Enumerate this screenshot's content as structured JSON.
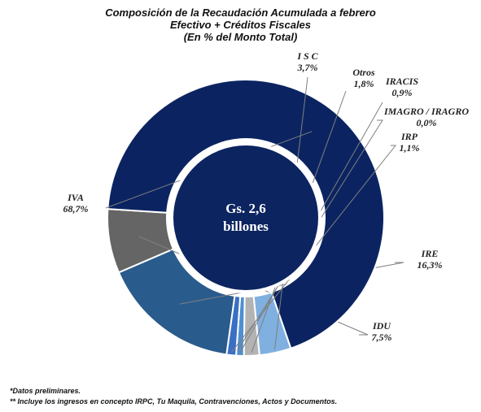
{
  "title_lines": [
    "Composición de la Recaudación Acumulada a febrero",
    "Efectivo + Créditos Fiscales",
    "(En % del Monto Total)"
  ],
  "center_label_lines": [
    "Gs. 2,6",
    "billones"
  ],
  "footnotes": [
    "*Datos preliminares.",
    "** Incluye los ingresos en concepto IRPC, Tu Maquila, Contravenciones, Actos y Documentos."
  ],
  "colors": {
    "center_fill": "#0c2460",
    "ring_stroke": "#ffffff",
    "leader_line": "#7f7f7f",
    "label_text": "#222222"
  },
  "chart_data": {
    "type": "pie",
    "variant": "donut",
    "unit": "%",
    "slices": [
      {
        "name": "IRE",
        "value": 16.3,
        "label": "16,3%",
        "color": "#2a5b8d"
      },
      {
        "name": "IDU",
        "value": 7.5,
        "label": "7,5%",
        "color": "#656565"
      },
      {
        "name": "IVA",
        "value": 68.7,
        "label": "68,7%",
        "color": "#0b2461"
      },
      {
        "name": "I S C",
        "value": 3.7,
        "label": "3,7%",
        "color": "#7fb0e0"
      },
      {
        "name": "Otros",
        "value": 1.8,
        "label": "1,8%",
        "color": "#b3b3b3"
      },
      {
        "name": "IRACIS",
        "value": 0.9,
        "label": "0,9%",
        "color": "#4e8fd1"
      },
      {
        "name": "IMAGRO / IRAGRO",
        "value": 0.0,
        "label": "0,0%",
        "color": "#9dc3e6"
      },
      {
        "name": "IRP",
        "value": 1.1,
        "label": "1,1%",
        "color": "#3a6fc4"
      }
    ]
  }
}
